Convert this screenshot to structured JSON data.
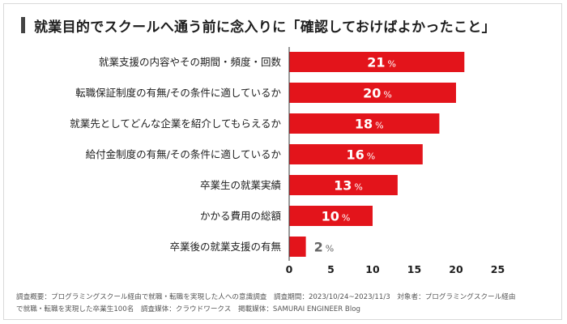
{
  "title": "就業目的でスクールへ通う前に念入りに「確認しておけばよかったこと」",
  "footer": {
    "line1": "調査概要：プログラミングスクール経由で就職・転職を実現した人への意識調査　調査期間：2023/10/24~2023/11/3　対象者：プログラミングスクール経由",
    "line2": "で就職・転職を実現した卒業生100名　調査媒体：クラウドワークス　掲載媒体：SAMURAI ENGINEER Blog"
  },
  "colors": {
    "bar": "#e3141b",
    "bar_small_label": "#666666",
    "axis": "#333333"
  },
  "chart_data": {
    "type": "bar",
    "orientation": "horizontal",
    "title": "就業目的でスクールへ通う前に念入りに「確認しておけばよかったこと」",
    "unit": "%",
    "categories": [
      "就業支援の内容やその期間・頻度・回数",
      "転職保証制度の有無/その条件に適しているか",
      "就業先としてどんな企業を紹介してもらえるか",
      "給付金制度の有無/その条件に適しているか",
      "卒業生の就業実績",
      "かかる費用の総額",
      "卒業後の就業支援の有無"
    ],
    "values": [
      21,
      20,
      18,
      16,
      13,
      10,
      2
    ],
    "xlim": [
      0,
      25
    ],
    "xticks": [
      0,
      5,
      10,
      15,
      20,
      25
    ],
    "legend": "none",
    "grid": false
  }
}
